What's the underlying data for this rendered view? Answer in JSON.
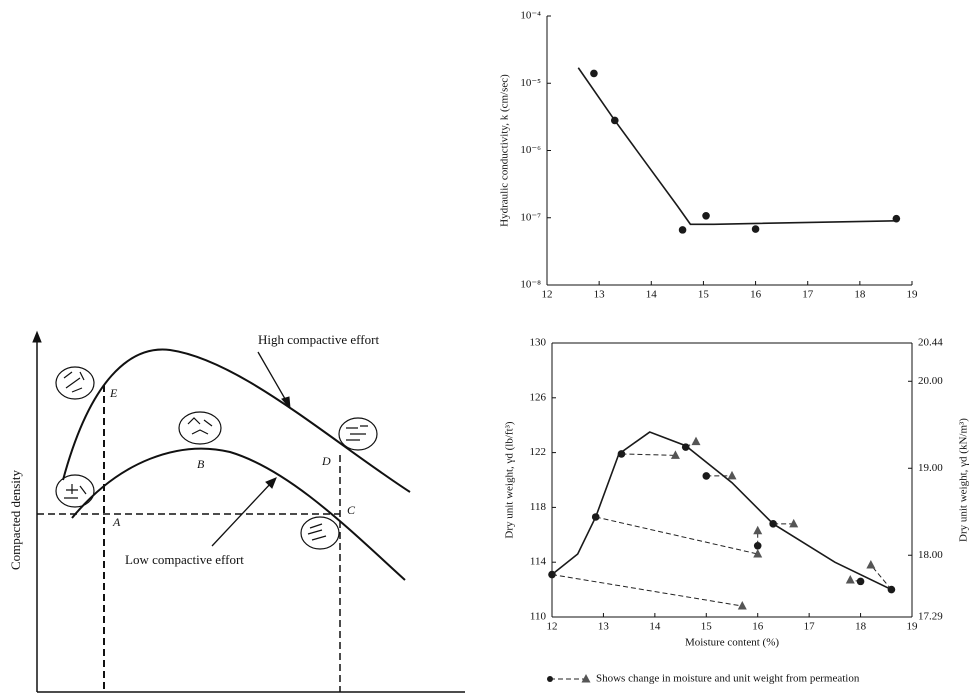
{
  "diagram": {
    "y_label": "Compacted density",
    "curves": [
      "High compactive effort",
      "Low compactive effort"
    ],
    "points": [
      "A",
      "B",
      "C",
      "D",
      "E"
    ]
  },
  "chart_data": [
    {
      "type": "line",
      "ylabel": "Hydraulic conductivity, k (cm/sec)",
      "log_y": true,
      "xlim": [
        12,
        19
      ],
      "xticks": [
        12,
        13,
        14,
        15,
        16,
        17,
        18,
        19
      ],
      "ylim": [
        1e-08,
        0.0001
      ],
      "yticks": [
        {
          "value": 1e-08,
          "label": "10⁻⁸"
        },
        {
          "value": 1e-07,
          "label": "10⁻⁷"
        },
        {
          "value": 1e-06,
          "label": "10⁻⁶"
        },
        {
          "value": 1e-05,
          "label": "10⁻⁵"
        },
        {
          "value": 0.0001,
          "label": "10⁻⁴"
        }
      ],
      "series": [
        {
          "marker": "circle",
          "color": "#1a1a1a",
          "x": [
            12.9,
            13.3,
            14.6,
            15.05,
            16,
            18.7
          ],
          "values": [
            1.4e-05,
            2.8e-06,
            6.6e-08,
            1.07e-07,
            6.8e-08,
            9.7e-08
          ]
        },
        {
          "marker": "line",
          "color": "#1a1a1a",
          "x": [
            12.6,
            13.3,
            14.5,
            14.75,
            15.2,
            18.7
          ],
          "values": [
            1.7e-05,
            2.8e-06,
            1.5e-07,
            8e-08,
            8e-08,
            9e-08
          ]
        }
      ]
    },
    {
      "type": "line",
      "xlabel": "Moisture content (%)",
      "ylabel": "Dry unit weight, γd (lb/ft³)",
      "y2label": "Dry unit weight, γd (kN/m³)",
      "xlim": [
        12,
        19
      ],
      "xticks": [
        12,
        13,
        14,
        15,
        16,
        17,
        18,
        19
      ],
      "ylim": [
        110,
        130
      ],
      "yticks": [
        110,
        114,
        118,
        122,
        126,
        130
      ],
      "y2lim": [
        17.29,
        20.44
      ],
      "y2ticks": [
        17.29,
        {
          "value": 18,
          "label": "18.00"
        },
        {
          "value": 19,
          "label": "19.00"
        },
        {
          "value": 20,
          "label": "20.00"
        },
        20.44
      ],
      "series": [
        {
          "marker": "circle",
          "color": "#1a1a1a",
          "x": [
            12,
            12.85,
            13.35,
            14.6,
            15,
            16,
            16.3,
            18,
            18.6
          ],
          "values": [
            113.1,
            117.3,
            121.9,
            122.4,
            120.3,
            115.2,
            116.8,
            112.6,
            112.0
          ]
        },
        {
          "marker": "triangle",
          "color": "#555555",
          "linked_from_previous": true,
          "name": "Shows change in moisture and unit weight from permeation",
          "x": [
            15.7,
            16,
            14.4,
            14.8,
            15.5,
            16,
            16.7,
            17.8,
            18.2
          ],
          "values": [
            110.8,
            114.6,
            121.8,
            122.8,
            120.3,
            116.3,
            116.8,
            112.7,
            113.8
          ]
        },
        {
          "marker": "line",
          "color": "#1a1a1a",
          "x": [
            12,
            12.5,
            12.85,
            13.3,
            13.9,
            14.6,
            15.5,
            16.3,
            17.5,
            18.6
          ],
          "values": [
            113.1,
            114.6,
            117.3,
            121.9,
            123.5,
            122.5,
            119.8,
            116.8,
            114,
            112
          ]
        }
      ]
    }
  ]
}
